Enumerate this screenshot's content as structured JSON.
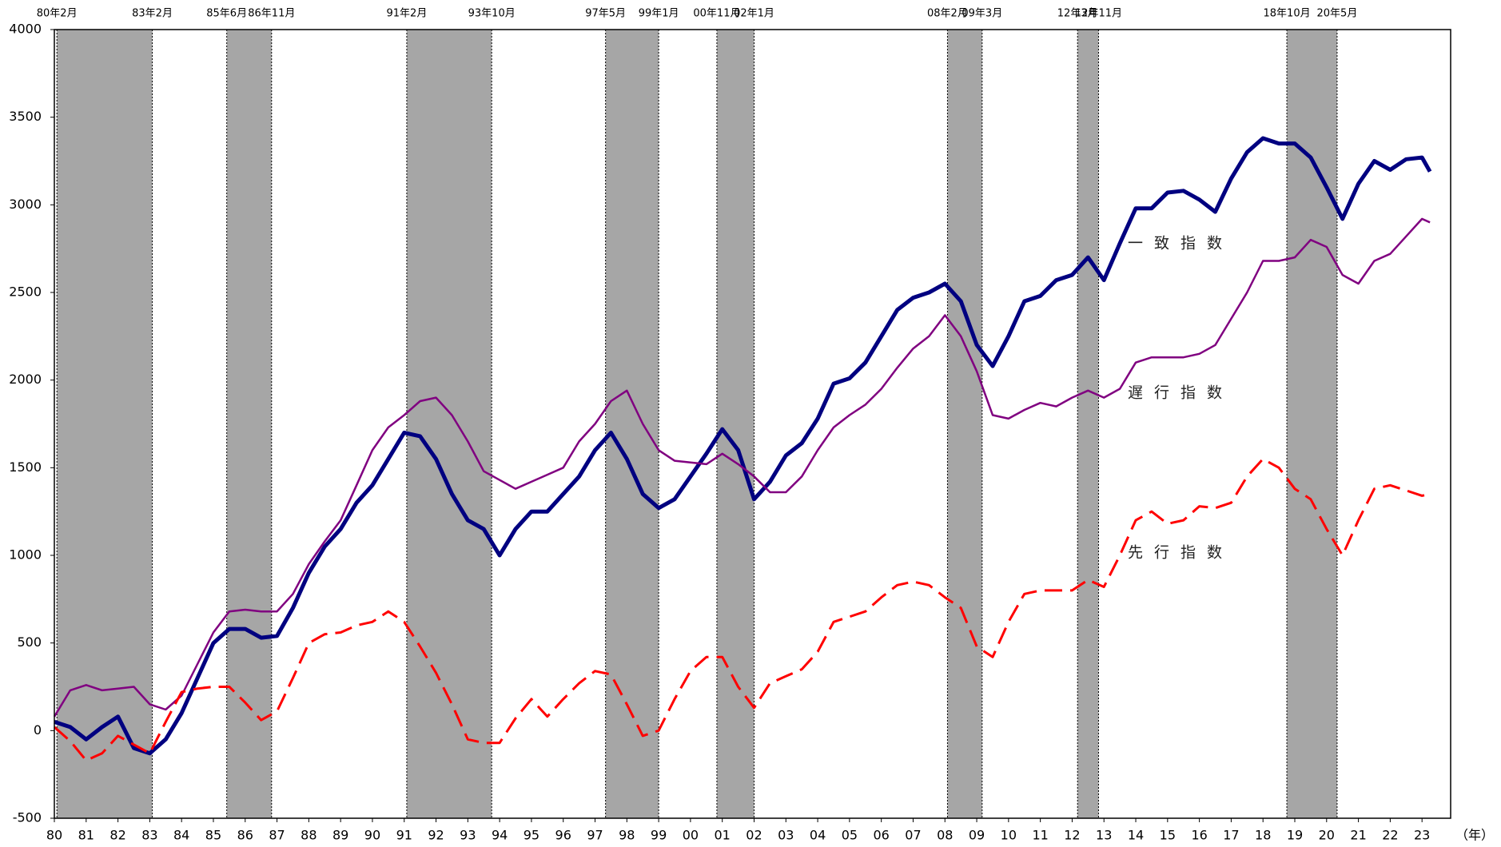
{
  "chart_data": {
    "type": "line",
    "x": [
      1980,
      1980.5,
      1981,
      1981.5,
      1982,
      1982.5,
      1983,
      1983.5,
      1984,
      1984.5,
      1985,
      1985.5,
      1986,
      1986.5,
      1987,
      1987.5,
      1988,
      1988.5,
      1989,
      1989.5,
      1990,
      1990.5,
      1991,
      1991.5,
      1992,
      1992.5,
      1993,
      1993.5,
      1994,
      1994.5,
      1995,
      1995.5,
      1996,
      1996.5,
      1997,
      1997.5,
      1998,
      1998.5,
      1999,
      1999.5,
      2000,
      2000.5,
      2001,
      2001.5,
      2002,
      2002.5,
      2003,
      2003.5,
      2004,
      2004.5,
      2005,
      2005.5,
      2006,
      2006.5,
      2007,
      2007.5,
      2008,
      2008.5,
      2009,
      2009.5,
      2010,
      2010.5,
      2011,
      2011.5,
      2012,
      2012.5,
      2013,
      2013.5,
      2014,
      2014.5,
      2015,
      2015.5,
      2016,
      2016.5,
      2017,
      2017.5,
      2018,
      2018.5,
      2019,
      2019.5,
      2020,
      2020.5,
      2021,
      2021.5,
      2022,
      2022.5,
      2023,
      2023.25
    ],
    "series": [
      {
        "name": "一致指数",
        "color": "#000080",
        "style": "solid",
        "width": 5,
        "values": [
          50,
          20,
          -50,
          20,
          80,
          -100,
          -130,
          -50,
          100,
          300,
          500,
          580,
          580,
          530,
          540,
          700,
          900,
          1050,
          1150,
          1300,
          1400,
          1550,
          1700,
          1680,
          1550,
          1350,
          1200,
          1150,
          1000,
          1150,
          1250,
          1250,
          1350,
          1450,
          1600,
          1700,
          1550,
          1350,
          1270,
          1320,
          1450,
          1580,
          1720,
          1600,
          1320,
          1420,
          1570,
          1640,
          1780,
          1980,
          2010,
          2100,
          2250,
          2400,
          2470,
          2500,
          2550,
          2450,
          2200,
          2080,
          2250,
          2450,
          2480,
          2570,
          2600,
          2700,
          2570,
          2780,
          2980,
          2980,
          3070,
          3080,
          3030,
          2960,
          3150,
          3300,
          3380,
          3350,
          3350,
          3270,
          3100,
          2920,
          3120,
          3250,
          3200,
          3260,
          3270,
          3190
        ]
      },
      {
        "name": "遅行指数",
        "color": "#800080",
        "style": "solid",
        "width": 2.5,
        "values": [
          80,
          230,
          260,
          230,
          240,
          250,
          150,
          120,
          200,
          380,
          560,
          680,
          690,
          680,
          680,
          780,
          950,
          1080,
          1200,
          1400,
          1600,
          1730,
          1800,
          1880,
          1900,
          1800,
          1650,
          1480,
          1430,
          1380,
          1420,
          1460,
          1500,
          1650,
          1750,
          1880,
          1940,
          1750,
          1600,
          1540,
          1530,
          1520,
          1580,
          1520,
          1450,
          1360,
          1360,
          1450,
          1600,
          1730,
          1800,
          1860,
          1950,
          2070,
          2180,
          2250,
          2370,
          2250,
          2050,
          1800,
          1780,
          1830,
          1870,
          1850,
          1900,
          1940,
          1900,
          1950,
          2100,
          2130,
          2130,
          2130,
          2150,
          2200,
          2350,
          2500,
          2680,
          2680,
          2700,
          2800,
          2760,
          2600,
          2550,
          2680,
          2720,
          2820,
          2920,
          2900
        ]
      },
      {
        "name": "先行指数",
        "color": "#ff0000",
        "style": "dashed",
        "width": 3,
        "values": [
          20,
          -60,
          -170,
          -130,
          -30,
          -80,
          -130,
          50,
          220,
          240,
          250,
          250,
          160,
          60,
          110,
          300,
          500,
          550,
          560,
          600,
          620,
          680,
          620,
          480,
          330,
          150,
          -50,
          -70,
          -70,
          70,
          180,
          80,
          180,
          270,
          340,
          320,
          150,
          -30,
          0,
          180,
          340,
          420,
          420,
          250,
          130,
          270,
          310,
          350,
          450,
          620,
          650,
          680,
          760,
          830,
          850,
          830,
          760,
          700,
          480,
          420,
          620,
          780,
          800,
          800,
          800,
          860,
          820,
          1000,
          1200,
          1250,
          1180,
          1200,
          1280,
          1270,
          1300,
          1450,
          1550,
          1500,
          1380,
          1320,
          1150,
          1000,
          1200,
          1380,
          1400,
          1370,
          1340,
          1350
        ]
      }
    ],
    "recessions": [
      {
        "start": 1980.08,
        "end": 1983.08,
        "start_label": "80年2月",
        "end_label": "83年2月"
      },
      {
        "start": 1985.42,
        "end": 1986.83,
        "start_label": "85年6月",
        "end_label": "86年11月"
      },
      {
        "start": 1991.08,
        "end": 1993.75,
        "start_label": "91年2月",
        "end_label": "93年10月"
      },
      {
        "start": 1997.33,
        "end": 1999.0,
        "start_label": "97年5月",
        "end_label": "99年1月"
      },
      {
        "start": 2000.83,
        "end": 2002.0,
        "start_label": "00年11月",
        "end_label": "02年1月"
      },
      {
        "start": 2008.08,
        "end": 2009.17,
        "start_label": "08年2月",
        "end_label": "09年3月"
      },
      {
        "start": 2012.17,
        "end": 2012.83,
        "start_label": "12年3月",
        "end_label": "12年11月"
      },
      {
        "start": 2018.75,
        "end": 2020.33,
        "start_label": "18年10月",
        "end_label": "20年5月"
      }
    ],
    "recession_color": "#a6a6a6",
    "x_unit": "（年）",
    "xlim": [
      1980,
      2023.9
    ],
    "xticks": [
      {
        "value": 1980,
        "label": "80"
      },
      {
        "value": 1981,
        "label": "81"
      },
      {
        "value": 1982,
        "label": "82"
      },
      {
        "value": 1983,
        "label": "83"
      },
      {
        "value": 1984,
        "label": "84"
      },
      {
        "value": 1985,
        "label": "85"
      },
      {
        "value": 1986,
        "label": "86"
      },
      {
        "value": 1987,
        "label": "87"
      },
      {
        "value": 1988,
        "label": "88"
      },
      {
        "value": 1989,
        "label": "89"
      },
      {
        "value": 1990,
        "label": "90"
      },
      {
        "value": 1991,
        "label": "91"
      },
      {
        "value": 1992,
        "label": "92"
      },
      {
        "value": 1993,
        "label": "93"
      },
      {
        "value": 1994,
        "label": "94"
      },
      {
        "value": 1995,
        "label": "95"
      },
      {
        "value": 1996,
        "label": "96"
      },
      {
        "value": 1997,
        "label": "97"
      },
      {
        "value": 1998,
        "label": "98"
      },
      {
        "value": 1999,
        "label": "99"
      },
      {
        "value": 2000,
        "label": "00"
      },
      {
        "value": 2001,
        "label": "01"
      },
      {
        "value": 2002,
        "label": "02"
      },
      {
        "value": 2003,
        "label": "03"
      },
      {
        "value": 2004,
        "label": "04"
      },
      {
        "value": 2005,
        "label": "05"
      },
      {
        "value": 2006,
        "label": "06"
      },
      {
        "value": 2007,
        "label": "07"
      },
      {
        "value": 2008,
        "label": "08"
      },
      {
        "value": 2009,
        "label": "09"
      },
      {
        "value": 2010,
        "label": "10"
      },
      {
        "value": 2011,
        "label": "11"
      },
      {
        "value": 2012,
        "label": "12"
      },
      {
        "value": 2013,
        "label": "13"
      },
      {
        "value": 2014,
        "label": "14"
      },
      {
        "value": 2015,
        "label": "15"
      },
      {
        "value": 2016,
        "label": "16"
      },
      {
        "value": 2017,
        "label": "17"
      },
      {
        "value": 2018,
        "label": "18"
      },
      {
        "value": 2019,
        "label": "19"
      },
      {
        "value": 2020,
        "label": "20"
      },
      {
        "value": 2021,
        "label": "21"
      },
      {
        "value": 2022,
        "label": "22"
      },
      {
        "value": 2023,
        "label": "23"
      }
    ],
    "ylim": [
      -500,
      4000
    ],
    "yticks": [
      -500,
      0,
      500,
      1000,
      1500,
      2000,
      2500,
      3000,
      3500,
      4000
    ],
    "grid": false
  }
}
